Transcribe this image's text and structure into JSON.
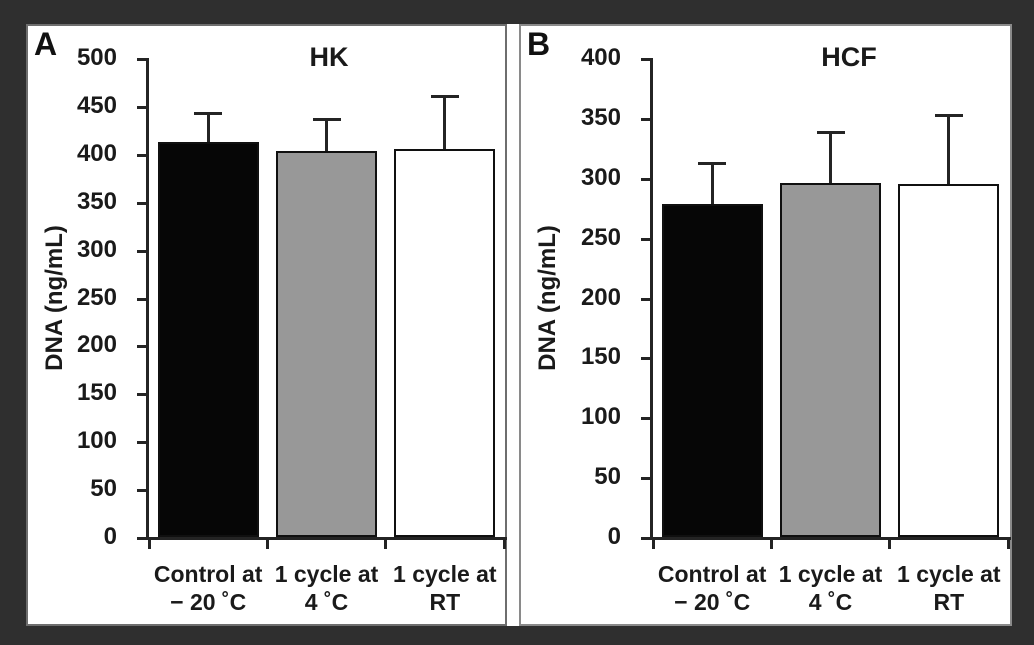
{
  "figure": {
    "type": "two-panel bar chart figure",
    "colors": {
      "frame_background": "#2f2f2f",
      "panel_background": "#ffffff",
      "panel_border": "#8a8a8a",
      "axis_and_text": "#1a1a1a"
    }
  },
  "chart_data": [
    {
      "type": "bar",
      "panel_label": "A",
      "title": "HK",
      "xlabel": "",
      "ylabel": "DNA (ng/mL)",
      "categories": [
        [
          "Control at",
          "− 20 ˚C"
        ],
        [
          "1 cycle at",
          "4 ˚C"
        ],
        [
          "1 cycle at",
          "RT"
        ]
      ],
      "values": [
        412,
        403,
        405
      ],
      "error_up": [
        30,
        33,
        55
      ],
      "ylim": [
        0,
        500
      ],
      "ytick_step": 50,
      "bar_colors": [
        "#060606",
        "#989898",
        "#ffffff"
      ],
      "grid": false,
      "legend": "none"
    },
    {
      "type": "bar",
      "panel_label": "B",
      "title": "HCF",
      "xlabel": "",
      "ylabel": "DNA (ng/mL)",
      "categories": [
        [
          "Control at",
          "− 20 ˚C"
        ],
        [
          "1 cycle at",
          "4 ˚C"
        ],
        [
          "1 cycle at",
          "RT"
        ]
      ],
      "values": [
        278,
        296,
        295
      ],
      "error_up": [
        34,
        42,
        57
      ],
      "ylim": [
        0,
        400
      ],
      "ytick_step": 50,
      "bar_colors": [
        "#060606",
        "#989898",
        "#ffffff"
      ],
      "grid": false,
      "legend": "none"
    }
  ]
}
